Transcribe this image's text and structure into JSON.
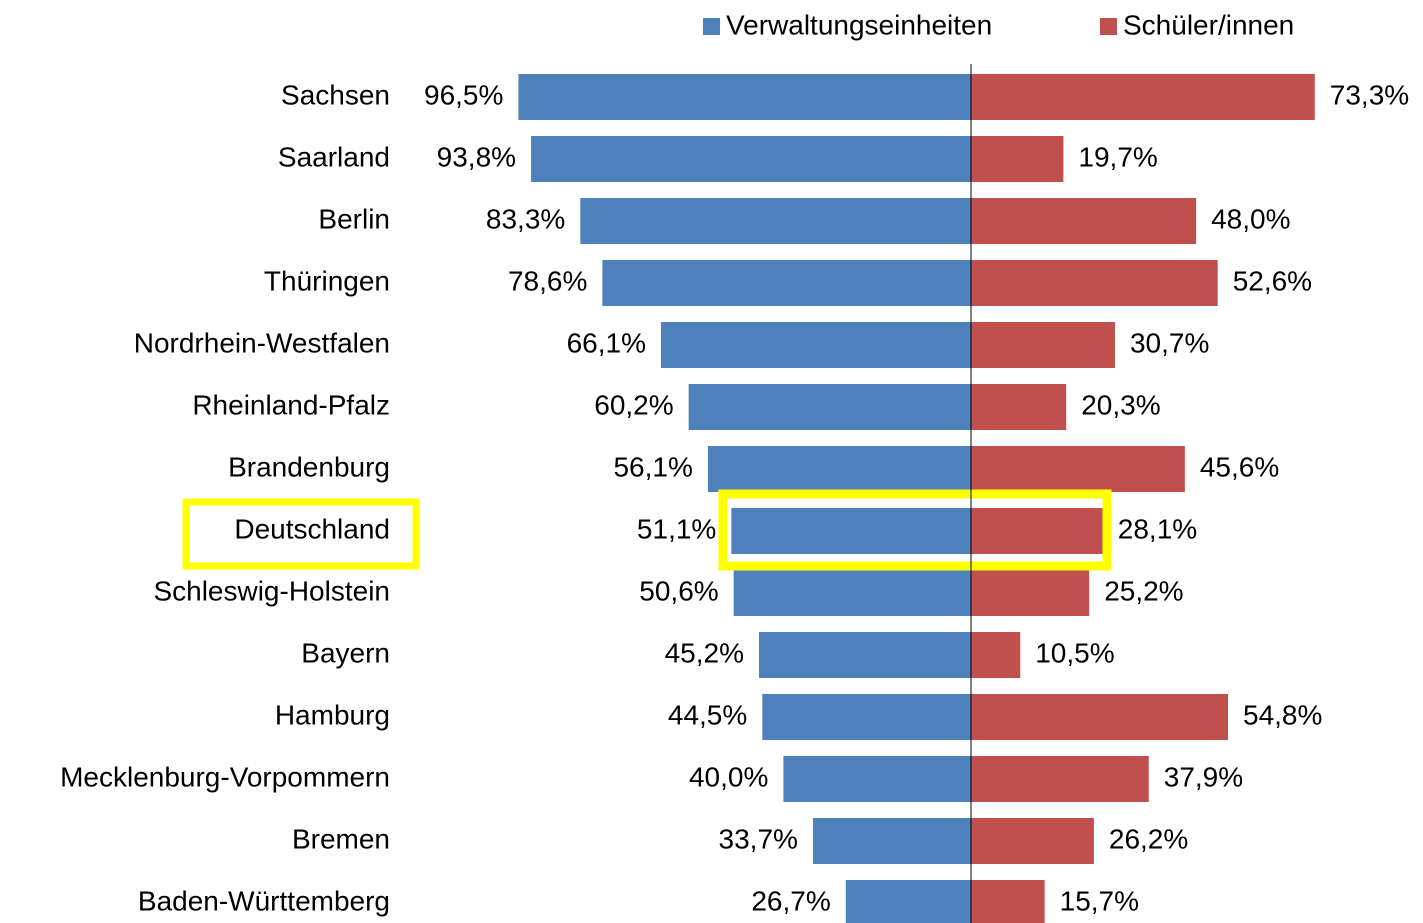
{
  "chart_data": {
    "type": "butterfly",
    "categories": [
      "Sachsen",
      "Saarland",
      "Berlin",
      "Thüringen",
      "Nordrhein-Westfalen",
      "Rheinland-Pfalz",
      "Brandenburg",
      "Deutschland",
      "Schleswig-Holstein",
      "Bayern",
      "Hamburg",
      "Mecklenburg-Vorpommern",
      "Bremen",
      "Baden-Württemberg"
    ],
    "series": [
      {
        "name": "Verwaltungseinheiten",
        "color": "#4f81bd",
        "values": [
          96.5,
          93.8,
          83.3,
          78.6,
          66.1,
          60.2,
          56.1,
          51.1,
          50.6,
          45.2,
          44.5,
          40.0,
          33.7,
          26.7
        ],
        "value_labels": [
          "96,5%",
          "93,8%",
          "83,3%",
          "78,6%",
          "66,1%",
          "60,2%",
          "56,1%",
          "51,1%",
          "50,6%",
          "45,2%",
          "44,5%",
          "40,0%",
          "33,7%",
          "26,7%"
        ]
      },
      {
        "name": "Schüler/innen",
        "color": "#c0504d",
        "values": [
          73.3,
          19.7,
          48.0,
          52.6,
          30.7,
          20.3,
          45.6,
          28.1,
          25.2,
          10.5,
          54.8,
          37.9,
          26.2,
          15.7
        ],
        "value_labels": [
          "73,3%",
          "19,7%",
          "48,0%",
          "52,6%",
          "30,7%",
          "20,3%",
          "45,6%",
          "28,1%",
          "25,2%",
          "10,5%",
          "54,8%",
          "37,9%",
          "26,2%",
          "15,7%"
        ]
      }
    ]
  }
}
